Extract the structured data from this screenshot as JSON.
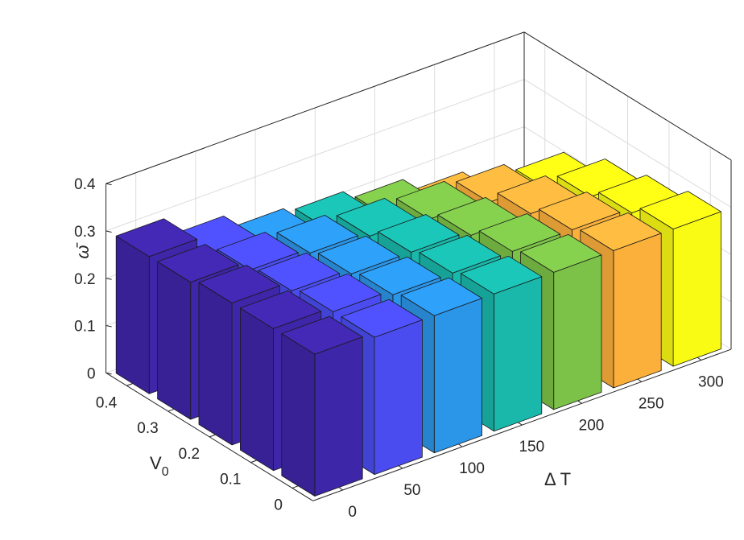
{
  "chart_data": {
    "type": "bar3d",
    "xlabel": "Δ T",
    "ylabel": "V",
    "ylabel_sub": "0",
    "zlabel": "ω̄",
    "x_categories": [
      "0",
      "50",
      "100",
      "150",
      "200",
      "250",
      "300"
    ],
    "y_categories": [
      "0",
      "0.1",
      "0.2",
      "0.3",
      "0.4"
    ],
    "x_values": [
      0,
      50,
      100,
      150,
      200,
      250,
      300
    ],
    "y_values": [
      0,
      0.1,
      0.2,
      0.3,
      0.4
    ],
    "zlim": [
      0,
      0.4
    ],
    "z_ticks": [
      "0",
      "0.1",
      "0.2",
      "0.3",
      "0.4"
    ],
    "grid": true,
    "series_colors": [
      "#3e26a8",
      "#4a4cf0",
      "#2b95e8",
      "#19b8aa",
      "#7cc248",
      "#fcb03c",
      "#f9fb14"
    ],
    "values": [
      [
        0.3,
        0.29,
        0.29,
        0.29,
        0.29,
        0.29,
        0.29
      ],
      [
        0.3,
        0.29,
        0.28,
        0.28,
        0.28,
        0.28,
        0.27
      ],
      [
        0.3,
        0.28,
        0.27,
        0.27,
        0.26,
        0.26,
        0.25
      ],
      [
        0.29,
        0.27,
        0.26,
        0.25,
        0.24,
        0.23,
        0.21
      ],
      [
        0.29,
        0.25,
        0.22,
        0.21,
        0.19,
        0.16,
        0.12
      ]
    ]
  }
}
